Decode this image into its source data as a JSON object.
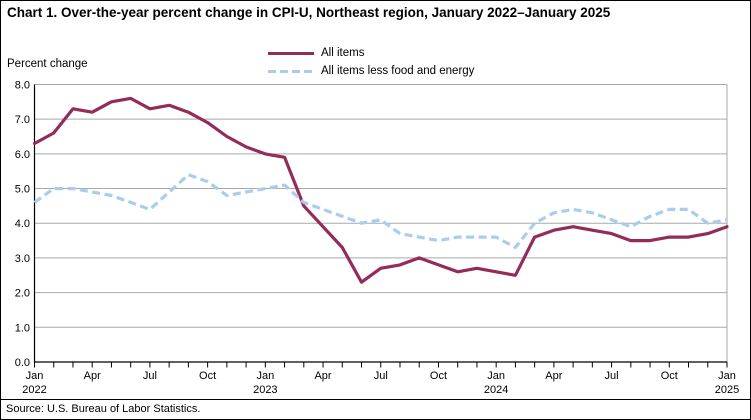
{
  "page": {
    "title": "Chart 1. Over-the-year percent change in CPI-U, Northeast region, January 2022–January 2025",
    "y_axis_label": "Percent change",
    "source": "Source: U.S. Bureau of Labor Statistics."
  },
  "legend": [
    {
      "label": "All items",
      "color": "#942c5a",
      "style": "solid"
    },
    {
      "label": "All items less food and energy",
      "color": "#a9cdee",
      "style": "dashed"
    }
  ],
  "chart_data": {
    "type": "line",
    "title": "Chart 1. Over-the-year percent change in CPI-U, Northeast region, January 2022–January 2025",
    "xlabel": "",
    "ylabel": "Percent change",
    "ylim": [
      0,
      8
    ],
    "grid": true,
    "grid_color": "#a9a9a9",
    "legend_position": "top-center",
    "y_tick_labels": [
      "0.0",
      "1.0",
      "2.0",
      "3.0",
      "4.0",
      "5.0",
      "6.0",
      "7.0",
      "8.0"
    ],
    "x_month_labels": [
      "Jan",
      "Apr",
      "Jul",
      "Oct"
    ],
    "x_year_labels": [
      "2022",
      "2023",
      "2024",
      "2025"
    ],
    "x_year_positions": [
      0,
      12,
      24,
      36
    ],
    "x": [
      "Jan 2022",
      "Feb 2022",
      "Mar 2022",
      "Apr 2022",
      "May 2022",
      "Jun 2022",
      "Jul 2022",
      "Aug 2022",
      "Sep 2022",
      "Oct 2022",
      "Nov 2022",
      "Dec 2022",
      "Jan 2023",
      "Feb 2023",
      "Mar 2023",
      "Apr 2023",
      "May 2023",
      "Jun 2023",
      "Jul 2023",
      "Aug 2023",
      "Sep 2023",
      "Oct 2023",
      "Nov 2023",
      "Dec 2023",
      "Jan 2024",
      "Feb 2024",
      "Mar 2024",
      "Apr 2024",
      "May 2024",
      "Jun 2024",
      "Jul 2024",
      "Aug 2024",
      "Sep 2024",
      "Oct 2024",
      "Nov 2024",
      "Dec 2024",
      "Jan 2025"
    ],
    "series": [
      {
        "id": "all-items",
        "name": "All items",
        "color": "#942c5a",
        "dash": false,
        "values": [
          6.3,
          6.6,
          7.3,
          7.2,
          7.5,
          7.6,
          7.3,
          7.4,
          7.2,
          6.9,
          6.5,
          6.2,
          6.0,
          5.9,
          4.5,
          3.9,
          3.3,
          2.3,
          2.7,
          2.8,
          3.0,
          2.8,
          2.6,
          2.7,
          2.6,
          2.5,
          3.6,
          3.8,
          3.9,
          3.8,
          3.7,
          3.5,
          3.5,
          3.6,
          3.6,
          3.7,
          3.9
        ]
      },
      {
        "id": "all-items-less-food-and-energy",
        "name": "All items less food and energy",
        "color": "#a9cdee",
        "dash": true,
        "values": [
          4.6,
          5.0,
          5.0,
          4.9,
          4.8,
          4.6,
          4.4,
          4.9,
          5.4,
          5.2,
          4.8,
          4.9,
          5.0,
          5.1,
          4.6,
          4.4,
          4.2,
          4.0,
          4.1,
          3.7,
          3.6,
          3.5,
          3.6,
          3.6,
          3.6,
          3.3,
          4.0,
          4.3,
          4.4,
          4.3,
          4.1,
          3.9,
          4.2,
          4.4,
          4.4,
          4.0,
          4.1
        ]
      }
    ]
  }
}
